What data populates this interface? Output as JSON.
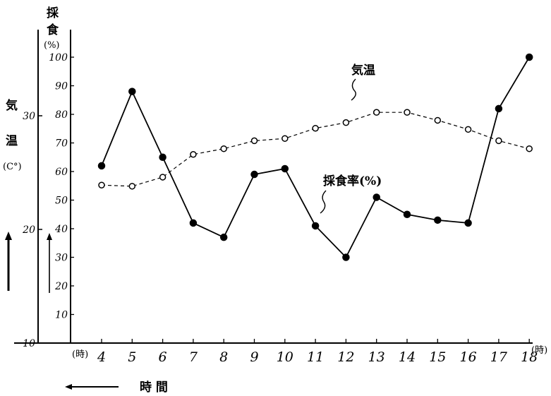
{
  "chart_data": {
    "type": "line",
    "xlabel": "時 間",
    "x_unit_label": "(時)",
    "x_end_label": "(時)",
    "x": [
      4,
      5,
      6,
      7,
      8,
      9,
      10,
      11,
      12,
      13,
      14,
      15,
      16,
      17,
      18
    ],
    "xlim": [
      3,
      18
    ],
    "y_left": {
      "label": "気温",
      "unit": "(C°)",
      "ticks": [
        10,
        20,
        30
      ],
      "ylim": [
        10,
        39
      ]
    },
    "y_right": {
      "label": "採食",
      "unit": "(%)",
      "ticks": [
        10,
        20,
        30,
        40,
        50,
        60,
        70,
        80,
        90,
        100
      ],
      "ylim": [
        0,
        100
      ]
    },
    "series": [
      {
        "name": "採食率",
        "unit": "(%)",
        "axis": "right",
        "style": "solid-filled-circle",
        "values": [
          62,
          88,
          65,
          42,
          37,
          59,
          61,
          41,
          30,
          51,
          45,
          43,
          42,
          82,
          100
        ]
      },
      {
        "name": "気温",
        "unit": "",
        "axis": "left",
        "style": "dashed-open-circle",
        "values": [
          23.9,
          23.8,
          24.6,
          26.6,
          27.1,
          27.8,
          28.0,
          28.9,
          29.4,
          30.3,
          30.3,
          29.6,
          28.8,
          27.8,
          27.1
        ]
      }
    ],
    "grid": false,
    "legend": "inline annotations"
  }
}
